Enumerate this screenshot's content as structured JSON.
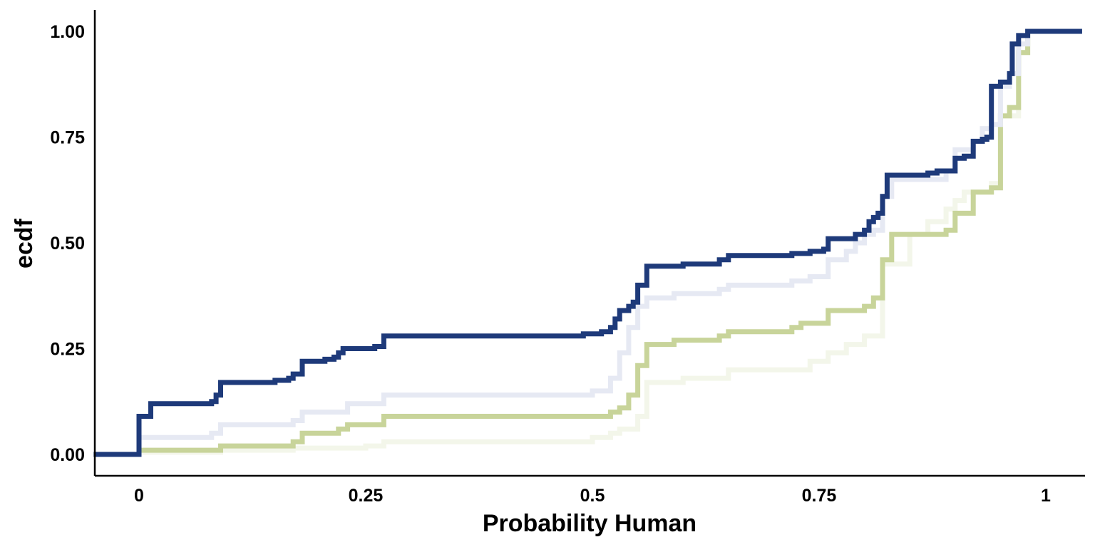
{
  "chart_data": {
    "type": "line",
    "step": true,
    "xlabel": "Probability Human",
    "ylabel": "ecdf",
    "xlim": [
      -0.05,
      1.04
    ],
    "ylim": [
      -0.05,
      1.05
    ],
    "x_ticks": [
      0,
      0.25,
      0.5,
      0.75,
      1
    ],
    "x_tick_labels": [
      "0",
      "0.25",
      "0.5",
      "0.75",
      "1"
    ],
    "y_ticks": [
      0,
      0.25,
      0.5,
      0.75,
      1
    ],
    "y_tick_labels": [
      "0.00",
      "0.25",
      "0.50",
      "0.75",
      "1.00"
    ],
    "grid": false,
    "legend": "none",
    "series": [
      {
        "color": "#f3f6ea",
        "points": [
          [
            -0.05,
            0
          ],
          [
            0,
            0
          ],
          [
            0,
            0.005
          ],
          [
            0.09,
            0.01
          ],
          [
            0.17,
            0.015
          ],
          [
            0.25,
            0.02
          ],
          [
            0.27,
            0.03
          ],
          [
            0.5,
            0.04
          ],
          [
            0.52,
            0.05
          ],
          [
            0.53,
            0.06
          ],
          [
            0.55,
            0.07
          ],
          [
            0.55,
            0.09
          ],
          [
            0.56,
            0.17
          ],
          [
            0.6,
            0.18
          ],
          [
            0.65,
            0.2
          ],
          [
            0.74,
            0.22
          ],
          [
            0.76,
            0.24
          ],
          [
            0.78,
            0.26
          ],
          [
            0.8,
            0.28
          ],
          [
            0.82,
            0.3
          ],
          [
            0.82,
            0.45
          ],
          [
            0.85,
            0.52
          ],
          [
            0.87,
            0.55
          ],
          [
            0.89,
            0.58
          ],
          [
            0.9,
            0.6
          ],
          [
            0.91,
            0.62
          ],
          [
            0.94,
            0.64
          ],
          [
            0.95,
            0.72
          ],
          [
            0.95,
            0.8
          ],
          [
            0.97,
            0.95
          ],
          [
            0.98,
            1
          ],
          [
            1.04,
            1
          ]
        ]
      },
      {
        "color": "#c8d49a",
        "points": [
          [
            -0.05,
            0
          ],
          [
            0,
            0
          ],
          [
            0,
            0.01
          ],
          [
            0.08,
            0.01
          ],
          [
            0.09,
            0.02
          ],
          [
            0.17,
            0.03
          ],
          [
            0.18,
            0.05
          ],
          [
            0.22,
            0.06
          ],
          [
            0.23,
            0.07
          ],
          [
            0.27,
            0.08
          ],
          [
            0.27,
            0.09
          ],
          [
            0.49,
            0.09
          ],
          [
            0.52,
            0.1
          ],
          [
            0.53,
            0.11
          ],
          [
            0.54,
            0.14
          ],
          [
            0.55,
            0.16
          ],
          [
            0.55,
            0.21
          ],
          [
            0.56,
            0.24
          ],
          [
            0.56,
            0.26
          ],
          [
            0.59,
            0.27
          ],
          [
            0.64,
            0.28
          ],
          [
            0.65,
            0.29
          ],
          [
            0.72,
            0.3
          ],
          [
            0.73,
            0.31
          ],
          [
            0.76,
            0.32
          ],
          [
            0.76,
            0.34
          ],
          [
            0.8,
            0.35
          ],
          [
            0.81,
            0.37
          ],
          [
            0.82,
            0.38
          ],
          [
            0.82,
            0.46
          ],
          [
            0.83,
            0.5
          ],
          [
            0.83,
            0.52
          ],
          [
            0.89,
            0.53
          ],
          [
            0.9,
            0.57
          ],
          [
            0.92,
            0.58
          ],
          [
            0.92,
            0.62
          ],
          [
            0.94,
            0.63
          ],
          [
            0.95,
            0.8
          ],
          [
            0.96,
            0.82
          ],
          [
            0.97,
            0.95
          ],
          [
            0.98,
            1
          ],
          [
            1.04,
            1
          ]
        ]
      },
      {
        "color": "#e6e9f3",
        "points": [
          [
            -0.05,
            0
          ],
          [
            0,
            0
          ],
          [
            0,
            0.04
          ],
          [
            0.08,
            0.05
          ],
          [
            0.09,
            0.07
          ],
          [
            0.17,
            0.08
          ],
          [
            0.18,
            0.1
          ],
          [
            0.23,
            0.11
          ],
          [
            0.23,
            0.12
          ],
          [
            0.27,
            0.13
          ],
          [
            0.27,
            0.14
          ],
          [
            0.5,
            0.15
          ],
          [
            0.52,
            0.18
          ],
          [
            0.53,
            0.24
          ],
          [
            0.54,
            0.3
          ],
          [
            0.55,
            0.35
          ],
          [
            0.56,
            0.37
          ],
          [
            0.59,
            0.38
          ],
          [
            0.64,
            0.39
          ],
          [
            0.65,
            0.4
          ],
          [
            0.72,
            0.41
          ],
          [
            0.74,
            0.42
          ],
          [
            0.76,
            0.43
          ],
          [
            0.76,
            0.46
          ],
          [
            0.78,
            0.48
          ],
          [
            0.79,
            0.5
          ],
          [
            0.8,
            0.52
          ],
          [
            0.81,
            0.53
          ],
          [
            0.82,
            0.55
          ],
          [
            0.82,
            0.61
          ],
          [
            0.83,
            0.65
          ],
          [
            0.89,
            0.67
          ],
          [
            0.9,
            0.72
          ],
          [
            0.92,
            0.74
          ],
          [
            0.93,
            0.77
          ],
          [
            0.94,
            0.78
          ],
          [
            0.95,
            0.87
          ],
          [
            0.96,
            0.9
          ],
          [
            0.97,
            0.97
          ],
          [
            0.98,
            1
          ],
          [
            1.04,
            1
          ]
        ]
      },
      {
        "color": "#1e3a7a",
        "points": [
          [
            -0.05,
            0
          ],
          [
            0,
            0
          ],
          [
            0,
            0.09
          ],
          [
            0.013,
            0.09
          ],
          [
            0.013,
            0.12
          ],
          [
            0.08,
            0.125
          ],
          [
            0.085,
            0.14
          ],
          [
            0.09,
            0.17
          ],
          [
            0.15,
            0.175
          ],
          [
            0.165,
            0.18
          ],
          [
            0.17,
            0.19
          ],
          [
            0.18,
            0.22
          ],
          [
            0.205,
            0.225
          ],
          [
            0.215,
            0.23
          ],
          [
            0.22,
            0.24
          ],
          [
            0.225,
            0.25
          ],
          [
            0.26,
            0.255
          ],
          [
            0.27,
            0.27
          ],
          [
            0.27,
            0.28
          ],
          [
            0.49,
            0.285
          ],
          [
            0.51,
            0.29
          ],
          [
            0.52,
            0.3
          ],
          [
            0.525,
            0.32
          ],
          [
            0.53,
            0.34
          ],
          [
            0.54,
            0.35
          ],
          [
            0.545,
            0.36
          ],
          [
            0.55,
            0.37
          ],
          [
            0.55,
            0.4
          ],
          [
            0.56,
            0.42
          ],
          [
            0.56,
            0.445
          ],
          [
            0.6,
            0.45
          ],
          [
            0.64,
            0.46
          ],
          [
            0.65,
            0.47
          ],
          [
            0.72,
            0.475
          ],
          [
            0.74,
            0.48
          ],
          [
            0.755,
            0.485
          ],
          [
            0.76,
            0.51
          ],
          [
            0.79,
            0.52
          ],
          [
            0.8,
            0.53
          ],
          [
            0.805,
            0.55
          ],
          [
            0.81,
            0.56
          ],
          [
            0.815,
            0.57
          ],
          [
            0.82,
            0.58
          ],
          [
            0.82,
            0.61
          ],
          [
            0.825,
            0.64
          ],
          [
            0.825,
            0.66
          ],
          [
            0.87,
            0.665
          ],
          [
            0.88,
            0.67
          ],
          [
            0.9,
            0.68
          ],
          [
            0.9,
            0.7
          ],
          [
            0.91,
            0.705
          ],
          [
            0.92,
            0.72
          ],
          [
            0.92,
            0.74
          ],
          [
            0.93,
            0.745
          ],
          [
            0.935,
            0.75
          ],
          [
            0.94,
            0.84
          ],
          [
            0.94,
            0.87
          ],
          [
            0.95,
            0.88
          ],
          [
            0.96,
            0.9
          ],
          [
            0.963,
            0.97
          ],
          [
            0.97,
            0.99
          ],
          [
            0.98,
            1
          ],
          [
            1.04,
            1
          ]
        ]
      }
    ]
  }
}
